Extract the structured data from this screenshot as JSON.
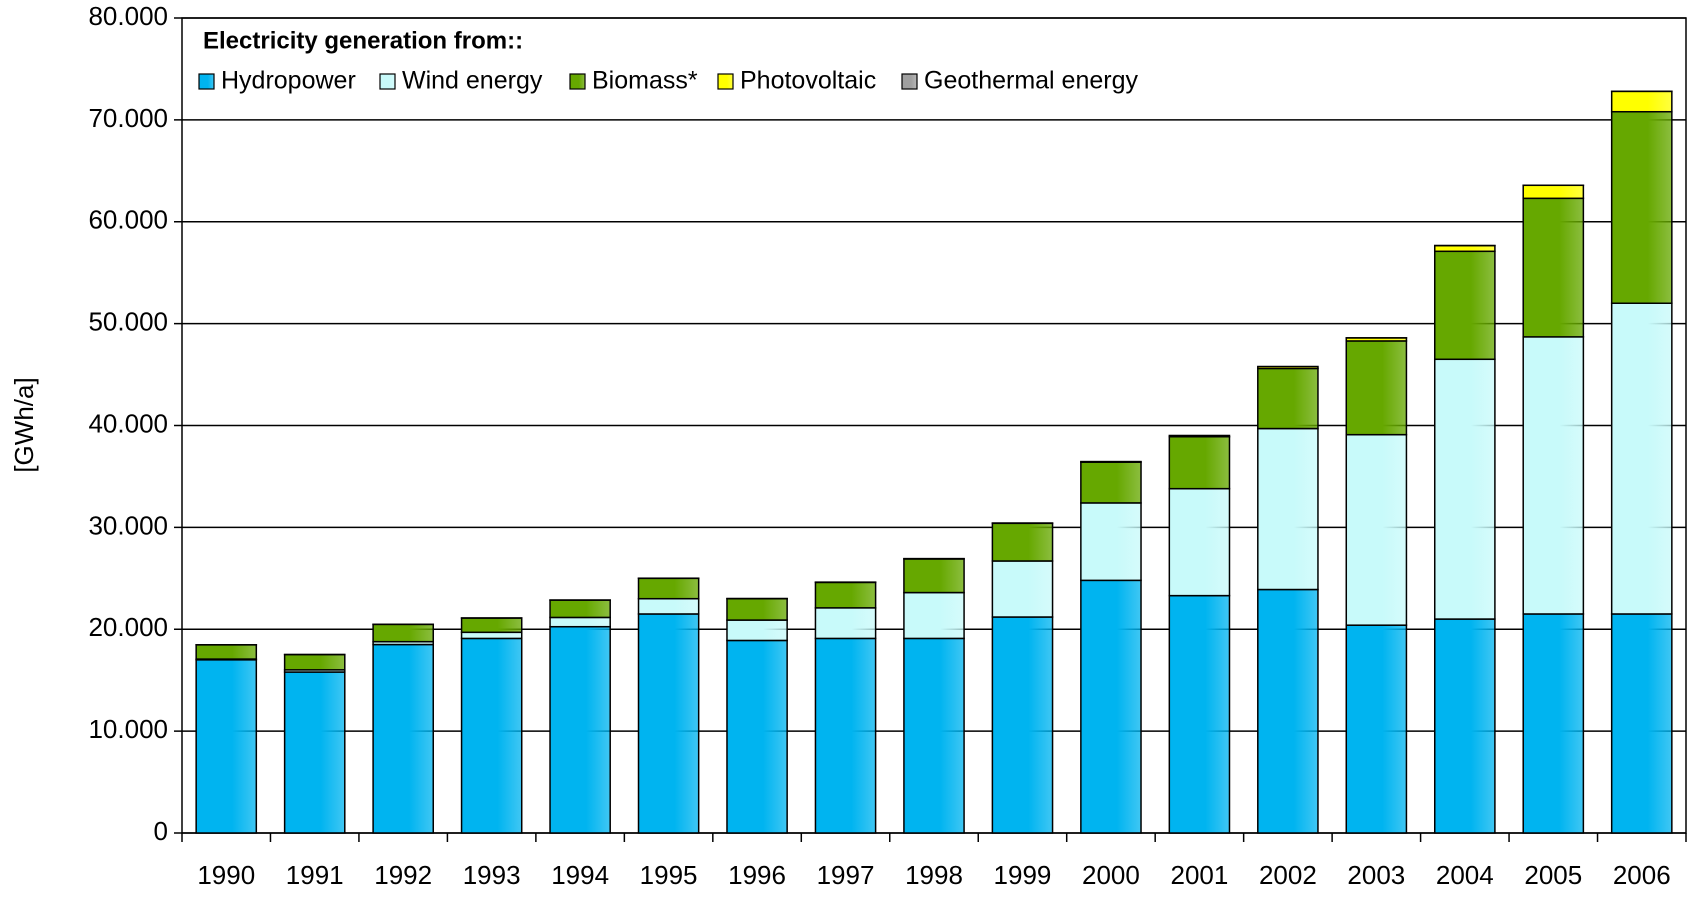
{
  "chart_data": {
    "type": "stacked_bar",
    "legend_title": "Electricity generation from::",
    "y_label": "[GWh/a]",
    "categories": [
      "1990",
      "1991",
      "1992",
      "1993",
      "1994",
      "1995",
      "1996",
      "1997",
      "1998",
      "1999",
      "2000",
      "2001",
      "2002",
      "2003",
      "2004",
      "2005",
      "2006"
    ],
    "series": [
      {
        "name": "Hydropower",
        "color": "#00b4f0",
        "values": [
          17000,
          15800,
          18500,
          19100,
          20250,
          21500,
          18900,
          19100,
          19100,
          21200,
          24800,
          23300,
          23900,
          20400,
          21000,
          21500,
          21500
        ]
      },
      {
        "name": "Wind energy",
        "color": "#c8fafa",
        "values": [
          71,
          215,
          280,
          600,
          909,
          1500,
          2000,
          3000,
          4500,
          5500,
          7600,
          10500,
          15800,
          18700,
          25500,
          27200,
          30500
        ]
      },
      {
        "name": "Biomass*",
        "color": "#66a800",
        "values": [
          1400,
          1500,
          1700,
          1400,
          1700,
          2000,
          2100,
          2500,
          3300,
          3700,
          4000,
          5100,
          5900,
          9200,
          10600,
          13600,
          18800
        ]
      },
      {
        "name": "Photovoltaic",
        "color": "#ffff00",
        "values": [
          1,
          2,
          3,
          6,
          8,
          11,
          16,
          26,
          35,
          30,
          60,
          120,
          190,
          300,
          560,
          1280,
          2000
        ]
      },
      {
        "name": "Geothermal energy",
        "color": "#a0a0a0",
        "values": [
          0,
          0,
          0,
          0,
          0,
          0,
          0,
          0,
          0,
          0,
          0,
          0,
          0,
          0.2,
          0.2,
          0.2,
          0.4
        ]
      }
    ],
    "ylim": [
      0,
      80000
    ],
    "yticks": [
      0,
      {
        "value": 10000,
        "label": "10.000"
      },
      {
        "value": 20000,
        "label": "20.000"
      },
      {
        "value": 30000,
        "label": "30.000"
      },
      {
        "value": 40000,
        "label": "40.000"
      },
      {
        "value": 50000,
        "label": "50.000"
      },
      {
        "value": 60000,
        "label": "60.000"
      },
      {
        "value": 70000,
        "label": "70.000"
      },
      {
        "value": 80000,
        "label": "80.000"
      }
    ],
    "grid": true
  }
}
